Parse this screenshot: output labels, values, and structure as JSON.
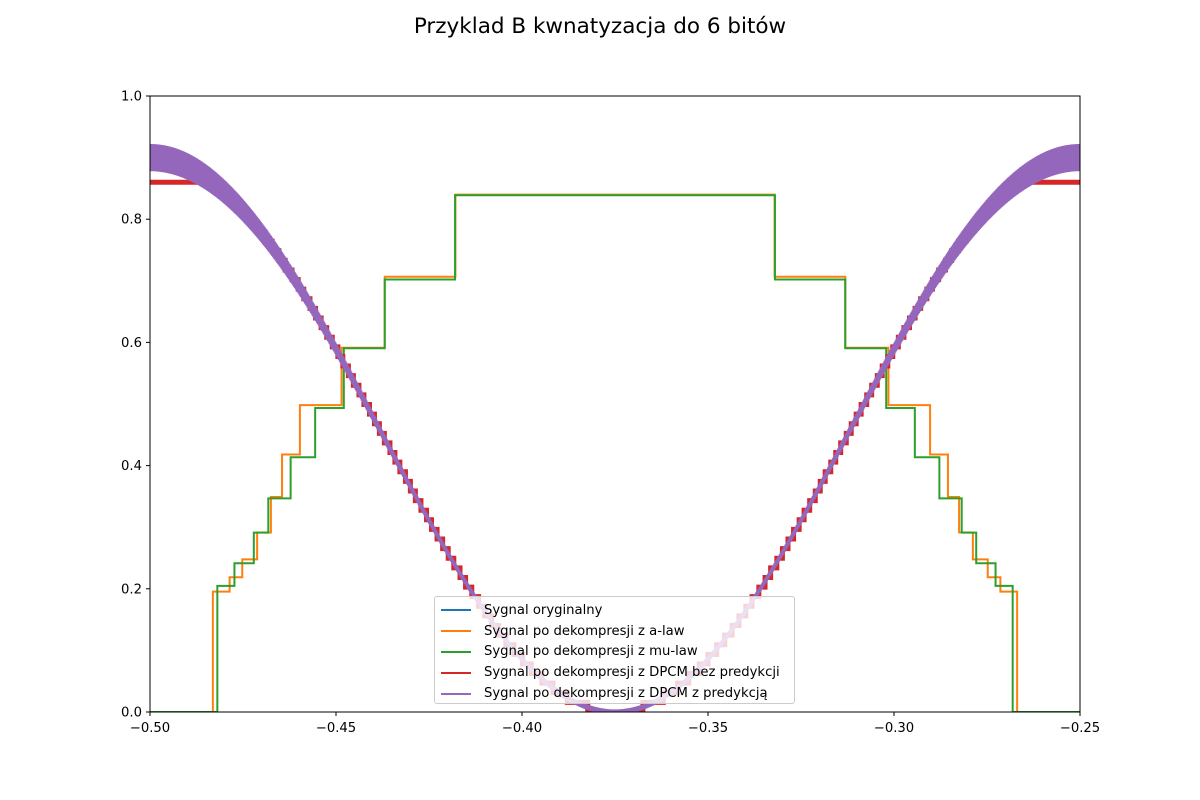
{
  "chart_data": {
    "type": "line",
    "title": "Przyklad B kwnatyzacja do 6 bitów",
    "xlim": [
      -0.5,
      -0.25
    ],
    "ylim": [
      0.0,
      1.0
    ],
    "xticks": [
      -0.5,
      -0.45,
      -0.4,
      -0.35,
      -0.3,
      -0.25
    ],
    "xtick_labels": [
      "−0.50",
      "−0.45",
      "−0.40",
      "−0.35",
      "−0.30",
      "−0.25"
    ],
    "yticks": [
      0.0,
      0.2,
      0.4,
      0.6,
      0.8,
      1.0
    ],
    "ytick_labels": [
      "0.0",
      "0.2",
      "0.4",
      "0.6",
      "0.8",
      "1.0"
    ],
    "grid": false,
    "legend_position": "lower center",
    "series": [
      {
        "name": "Sygnal oryginalny",
        "color": "#1f77b4",
        "style": "line"
      },
      {
        "name": "Sygnal po dekompresji z a-law",
        "color": "#ff7f0e",
        "style": "steps",
        "steps": [
          [
            -0.5,
            0.0
          ],
          [
            -0.4831,
            0.1955
          ],
          [
            -0.4786,
            0.2187
          ],
          [
            -0.4752,
            0.2478
          ],
          [
            -0.4712,
            0.2913
          ],
          [
            -0.4675,
            0.349
          ],
          [
            -0.4645,
            0.418
          ],
          [
            -0.4597,
            0.4982
          ],
          [
            -0.4485,
            0.5913
          ],
          [
            -0.4369,
            0.7066
          ],
          [
            -0.4179,
            0.8399
          ],
          [
            -0.3321,
            0.7066
          ],
          [
            -0.3131,
            0.5913
          ],
          [
            -0.3015,
            0.4982
          ],
          [
            -0.2903,
            0.418
          ],
          [
            -0.2855,
            0.349
          ],
          [
            -0.2825,
            0.2913
          ],
          [
            -0.2788,
            0.2478
          ],
          [
            -0.2748,
            0.2187
          ],
          [
            -0.2714,
            0.1955
          ],
          [
            -0.2669,
            0.0
          ]
        ]
      },
      {
        "name": "Sygnal po dekompresji z mu-law",
        "color": "#2ca02c",
        "style": "steps",
        "steps": [
          [
            -0.5,
            0.0
          ],
          [
            -0.4819,
            0.2047
          ],
          [
            -0.4773,
            0.2414
          ],
          [
            -0.4721,
            0.2911
          ],
          [
            -0.4682,
            0.3467
          ],
          [
            -0.4622,
            0.4135
          ],
          [
            -0.4556,
            0.4936
          ],
          [
            -0.4479,
            0.5905
          ],
          [
            -0.4369,
            0.7021
          ],
          [
            -0.418,
            0.8389
          ],
          [
            -0.332,
            0.7021
          ],
          [
            -0.3131,
            0.5905
          ],
          [
            -0.3021,
            0.4936
          ],
          [
            -0.2944,
            0.4135
          ],
          [
            -0.2878,
            0.3467
          ],
          [
            -0.2818,
            0.2911
          ],
          [
            -0.2779,
            0.2414
          ],
          [
            -0.2727,
            0.2047
          ],
          [
            -0.2681,
            0.0
          ]
        ]
      },
      {
        "name": "Sygnal po dekompresji z DPCM bez predykcji",
        "color": "#d62728",
        "style": "staircase",
        "step_size": 0.0156
      },
      {
        "name": "Sygnal po dekompresji z DPCM z predykcją",
        "color": "#9467bd",
        "style": "oscillating",
        "peak": 0.9
      }
    ]
  }
}
